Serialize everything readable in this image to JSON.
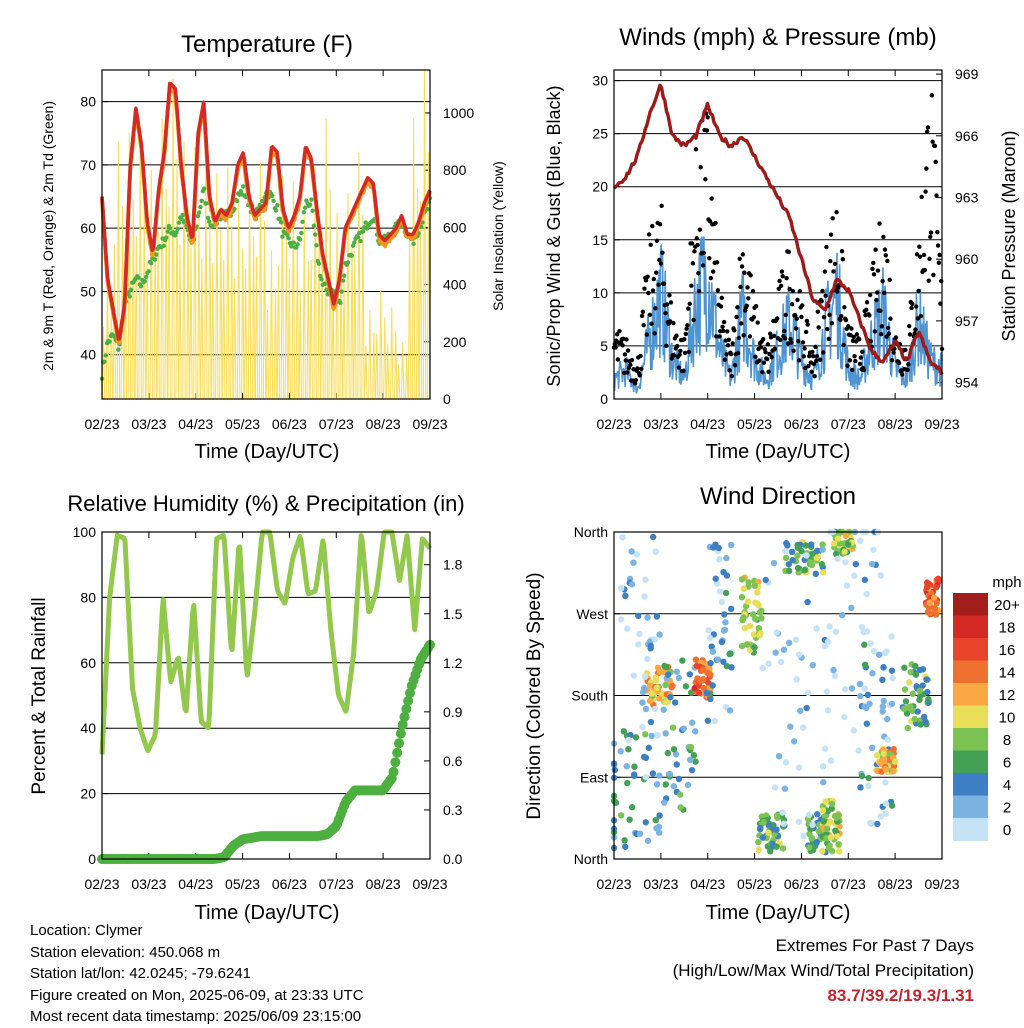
{
  "panels": {
    "temperature": {
      "title": "Temperature (F)",
      "ylabel_left": "2m & 9m T (Red, Orange) & 2m Td (Green)",
      "ylabel_right": "Solar Insolation (Yellow)",
      "xlabel": "Time (Day/UTC)"
    },
    "winds": {
      "title": "Winds (mph) & Pressure (mb)",
      "ylabel_left": "Sonic/Prop Wind & Gust (Blue, Black)",
      "ylabel_right": "Station Pressure (Maroon)",
      "xlabel": "Time (Day/UTC)"
    },
    "humidity": {
      "title": "Relative Humidity (%) & Precipitation (in)",
      "ylabel_left": "Percent & Total Rainfall",
      "xlabel": "Time (Day/UTC)"
    },
    "direction": {
      "title": "Wind Direction",
      "ylabel_left": "Direction (Colored By Speed)",
      "xlabel": "Time (Day/UTC)",
      "legend_title": "mph",
      "legend_labels": [
        "20+",
        "18",
        "16",
        "14",
        "12",
        "10",
        "8",
        "6",
        "4",
        "2",
        "0"
      ],
      "legend_colors": [
        "#a41d1d",
        "#d42a25",
        "#e8432b",
        "#f07030",
        "#f9a844",
        "#e8de57",
        "#7cc354",
        "#44a055",
        "#3d7fc2",
        "#7ab3e2",
        "#c6e3f6"
      ]
    }
  },
  "x_ticks": [
    "02/23",
    "03/23",
    "04/23",
    "05/23",
    "06/23",
    "07/23",
    "08/23",
    "09/23"
  ],
  "info": {
    "location": "Location: Clymer",
    "elevation": "Station elevation: 450.068 m",
    "latlon": "Station lat/lon: 42.0245; -79.6241",
    "created": "Figure created on Mon, 2025-06-09, at 23:33 UTC",
    "recent": "Most recent data timestamp: 2025/06/09 23:15:00"
  },
  "extremes": {
    "line1": "Extremes For Past 7 Days",
    "line2": "(High/Low/Max Wind/Total Precipitation)",
    "values": "83.7/39.2/19.3/1.31"
  },
  "colors": {
    "temp_2m": "#d42a25",
    "temp_9m": "#f7941d",
    "dewpoint": "#4caf3f",
    "solar": "#f8de5a",
    "gust": "#000000",
    "wind": "#4d94d1",
    "pressure": "#9b1b1b",
    "rh": "#92c84c",
    "precip": "#4caf3f"
  },
  "chart_data": [
    {
      "type": "line",
      "panel": "temperature",
      "x": [
        "02/23",
        "02/25",
        "02/27",
        "03/01",
        "03/05",
        "03/09",
        "03/13",
        "03/17",
        "03/20",
        "03/24",
        "03/28",
        "04/01",
        "04/03",
        "04/06",
        "04/09",
        "04/12",
        "04/16",
        "04/20",
        "04/22",
        "04/24",
        "04/27",
        "05/01",
        "05/05",
        "05/09",
        "05/13",
        "05/17",
        "05/21",
        "05/25",
        "05/29",
        "06/02",
        "06/06",
        "06/10",
        "06/14",
        "06/18",
        "06/22",
        "06/26",
        "06/30",
        "07/04",
        "07/08",
        "07/12",
        "07/16",
        "07/20",
        "07/24",
        "07/28",
        "08/01",
        "08/05",
        "08/09",
        "08/13",
        "08/17",
        "08/21",
        "08/25",
        "08/29",
        "09/02",
        "09/06",
        "09/10",
        "09/14",
        "09/18",
        "09/21",
        "09/23"
      ],
      "series": [
        {
          "name": "2m T",
          "values": [
            65,
            52,
            47,
            42,
            48,
            70,
            79,
            73,
            61,
            56,
            66,
            72,
            83,
            82,
            70,
            62,
            58,
            75,
            80,
            65,
            61,
            63,
            62,
            64,
            70,
            72,
            65,
            62,
            63,
            64,
            73,
            72,
            63,
            60,
            62,
            65,
            73,
            71,
            63,
            56,
            52,
            48,
            52,
            60,
            62,
            64,
            66,
            68,
            67,
            59,
            58,
            59,
            60,
            62,
            59,
            59,
            61,
            64,
            66
          ]
        },
        {
          "name": "Td",
          "values": [
            37,
            42,
            43,
            41,
            48,
            50,
            52,
            51,
            53,
            55,
            57,
            58,
            60,
            59,
            62,
            60,
            57,
            62,
            66,
            61,
            61,
            62,
            62,
            63,
            65,
            66,
            64,
            62,
            63,
            66,
            65,
            63,
            59,
            58,
            57,
            58,
            64,
            64,
            56,
            51,
            50,
            50,
            48,
            54,
            56,
            58,
            59,
            61,
            62,
            58,
            58,
            59,
            60,
            61,
            59,
            58,
            60,
            62,
            64
          ]
        }
      ],
      "ylim": [
        33,
        85
      ],
      "yticks": [
        40,
        50,
        60,
        70,
        80
      ],
      "y2_ticks": [
        0,
        200,
        400,
        600,
        800,
        1000
      ],
      "y2lim": [
        0,
        1150
      ],
      "solar_peaks": [
        420,
        900,
        930,
        950,
        800,
        980,
        1120,
        900,
        880,
        820,
        790,
        810,
        700,
        760,
        830,
        520,
        780,
        760,
        640,
        810,
        980,
        650,
        720,
        860,
        310,
        380,
        320,
        200,
        980,
        1150
      ]
    },
    {
      "type": "line",
      "panel": "winds",
      "x_ticks": [
        "02/23",
        "03/23",
        "04/23",
        "05/23",
        "06/23",
        "07/23",
        "08/23",
        "09/23"
      ],
      "ylim": [
        0,
        31
      ],
      "yticks": [
        0,
        5,
        10,
        15,
        20,
        25,
        30
      ],
      "y2lim": [
        953.2,
        969.2
      ],
      "y2_ticks": [
        954,
        957,
        960,
        963,
        966,
        969
      ],
      "series": [
        {
          "name": "Pressure",
          "values": [
            963.5,
            964,
            965,
            967,
            968.5,
            966,
            965.5,
            966,
            967.5,
            966,
            965.5,
            966,
            965,
            964,
            963,
            962,
            960,
            958,
            957.5,
            959,
            958.5,
            957,
            955.5,
            955,
            956,
            955,
            956.5,
            955,
            954.5
          ]
        },
        {
          "name": "Wind",
          "values": [
            2,
            3,
            1,
            6,
            11,
            4,
            2,
            10,
            13,
            5,
            2,
            9,
            4,
            2,
            5,
            8,
            4,
            2,
            7,
            11,
            3,
            2,
            6,
            9,
            3,
            2,
            8,
            4,
            3
          ]
        },
        {
          "name": "Gust",
          "values": [
            6,
            5,
            3,
            13,
            16,
            7,
            5,
            20,
            24,
            9,
            4,
            15,
            8,
            4,
            9,
            13,
            8,
            4,
            12,
            17,
            6,
            5,
            10,
            16,
            6,
            5,
            14,
            28,
            9
          ]
        }
      ]
    },
    {
      "type": "line",
      "panel": "humidity",
      "ylim": [
        0,
        100
      ],
      "yticks": [
        0,
        20,
        40,
        60,
        80,
        100
      ],
      "y2_ticks": [
        0.0,
        0.3,
        0.6,
        0.9,
        1.2,
        1.5,
        1.8
      ],
      "y2lim": [
        0,
        2.0
      ],
      "series": [
        {
          "name": "RH",
          "values": [
            32,
            80,
            99,
            98,
            52,
            40,
            33,
            38,
            80,
            54,
            62,
            44,
            79,
            42,
            40,
            98,
            99,
            62,
            98,
            55,
            75,
            100,
            100,
            82,
            78,
            92,
            99,
            81,
            82,
            98,
            70,
            50,
            45,
            63,
            100,
            75,
            82,
            100,
            100,
            85,
            99,
            70,
            98,
            95
          ]
        },
        {
          "name": "Precip",
          "values": [
            0,
            0,
            0,
            0,
            0,
            0,
            0,
            0,
            0,
            0,
            0,
            0,
            0,
            0.01,
            0.08,
            0.12,
            0.13,
            0.14,
            0.14,
            0.14,
            0.14,
            0.14,
            0.14,
            0.14,
            0.15,
            0.2,
            0.35,
            0.42,
            0.42,
            0.42,
            0.42,
            0.5,
            0.8,
            1.05,
            1.22,
            1.31
          ]
        }
      ]
    },
    {
      "type": "scatter",
      "panel": "direction",
      "ylabels": [
        "North",
        "West",
        "South",
        "East",
        "North"
      ],
      "legend_title": "mph"
    }
  ]
}
